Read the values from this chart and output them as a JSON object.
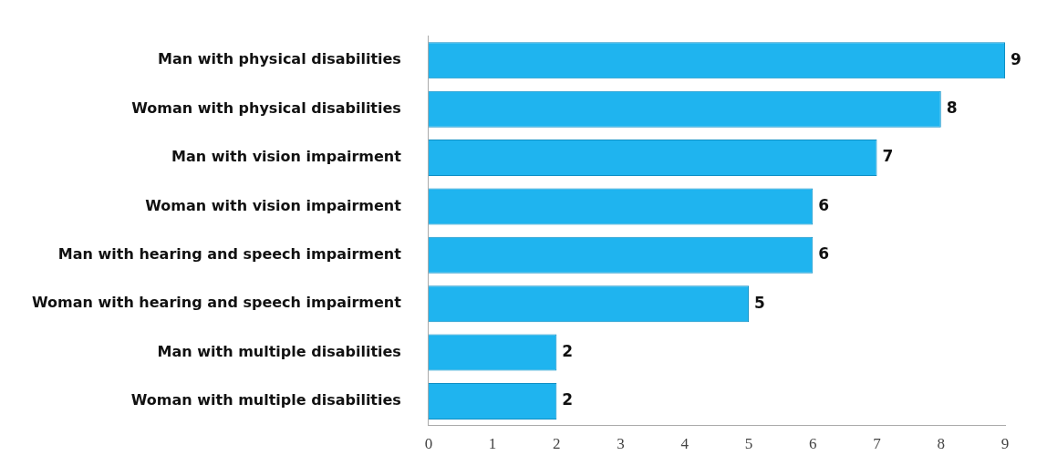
{
  "chart_data": {
    "type": "bar",
    "orientation": "horizontal",
    "categories": [
      "Man with physical disabilities",
      "Woman with physical disabilities",
      "Man with vision impairment",
      "Woman with vision impairment",
      "Man with hearing and speech impairment",
      "Woman with hearing and speech impairment",
      "Man with multiple disabilities",
      "Woman with multiple disabilities"
    ],
    "values": [
      9,
      8,
      7,
      6,
      6,
      5,
      2,
      2
    ],
    "color": "#1fb4ef",
    "xlim": [
      0,
      9
    ],
    "xticks": [
      0,
      1,
      2,
      3,
      4,
      5,
      6,
      7,
      8,
      9
    ],
    "data_labels": true,
    "grid": false,
    "legend": false
  }
}
